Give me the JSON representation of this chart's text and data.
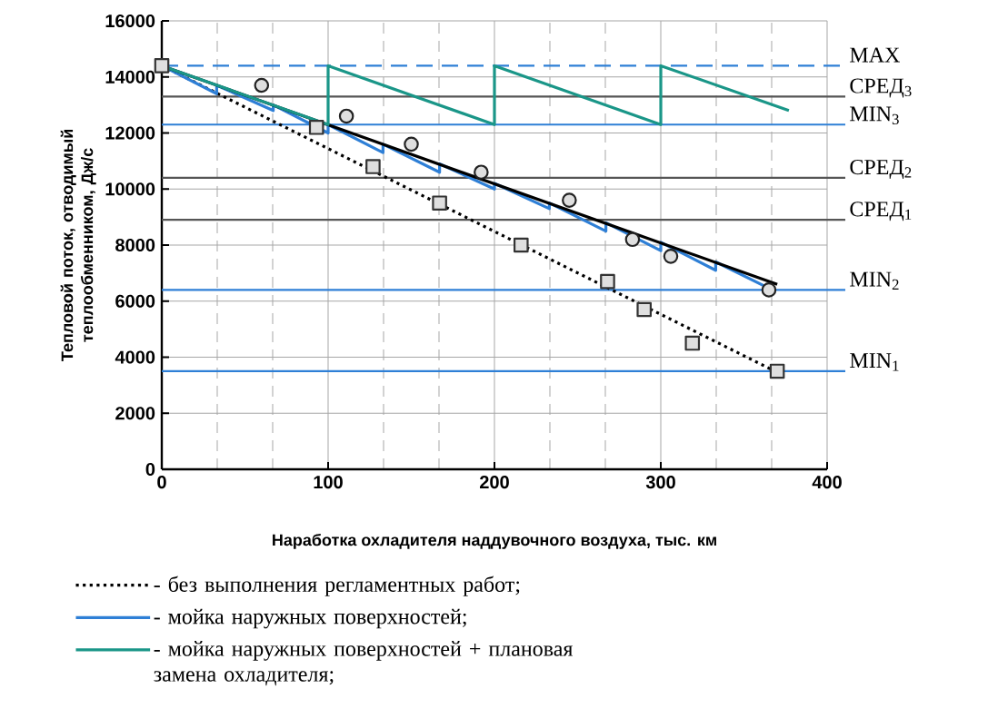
{
  "chart_data": {
    "type": "line",
    "xlabel": "Наработка охладителя наддувочного воздуха, тыс. км",
    "ylabel": "Тепловой поток, отводимый теплообменником, Дж/с",
    "xlim": [
      0,
      400
    ],
    "xticks": [
      0,
      100,
      200,
      300,
      400
    ],
    "ylim": [
      0,
      16000
    ],
    "yticks": [
      0,
      2000,
      4000,
      6000,
      8000,
      10000,
      12000,
      14000,
      16000
    ],
    "grid": true,
    "legend": "bottom",
    "series": [
      {
        "name": "- без выполнения регламентных работ;",
        "type": "line",
        "line_style": "dotted",
        "marker": "none",
        "color": "#000000",
        "x": [
          0,
          372
        ],
        "values": [
          14400,
          3400
        ]
      },
      {
        "type": "scatter",
        "marker": "square",
        "color": "#333333",
        "x": [
          0,
          93,
          127,
          167,
          216,
          268,
          290,
          319,
          370
        ],
        "values": [
          14400,
          12200,
          10800,
          9500,
          8000,
          6700,
          5700,
          4500,
          3500
        ]
      },
      {
        "name": "- мойка наружных поверхностей;",
        "type": "line",
        "line_style": "solid",
        "marker": "none",
        "color": "#2e7fd6",
        "x": [
          0,
          33,
          33,
          67,
          67,
          100,
          100,
          133,
          133,
          167,
          167,
          200,
          200,
          233,
          233,
          267,
          267,
          300,
          300,
          333,
          333,
          367
        ],
        "values": [
          14400,
          13400,
          13700,
          12800,
          13000,
          12000,
          12300,
          11300,
          11600,
          10600,
          10900,
          10000,
          10200,
          9300,
          9500,
          8500,
          8800,
          7800,
          8100,
          7100,
          7400,
          6400
        ]
      },
      {
        "type": "line",
        "line_style": "solid",
        "marker": "none",
        "color": "#000000",
        "x": [
          0,
          370
        ],
        "values": [
          14400,
          6600
        ]
      },
      {
        "type": "scatter",
        "marker": "circle",
        "color": "#222222",
        "x": [
          60,
          111,
          150,
          192,
          245,
          283,
          306,
          365
        ],
        "values": [
          13700,
          12600,
          11600,
          10600,
          9600,
          8200,
          7600,
          6400
        ]
      },
      {
        "name": "- мойка наружных поверхностей + плановая замена охладителя;",
        "type": "line",
        "line_style": "solid",
        "marker": "none",
        "color": "#1a9688",
        "x": [
          0,
          100,
          100,
          200,
          200,
          300,
          300,
          377
        ],
        "values": [
          14400,
          12300,
          14400,
          12300,
          14400,
          12300,
          14400,
          12800
        ]
      }
    ],
    "ref_lines": [
      {
        "axis": "y",
        "value": 14400,
        "label": "MAX",
        "color": "#2e7fd6",
        "line_style": "dashed"
      },
      {
        "axis": "y",
        "value": 13300,
        "label": "СРЕД$_{3}$",
        "color": "#555555",
        "line_style": "solid"
      },
      {
        "axis": "y",
        "value": 12300,
        "label": "MIN$_{3}$",
        "color": "#2e7fd6",
        "line_style": "solid"
      },
      {
        "axis": "y",
        "value": 10400,
        "label": "СРЕД$_{2}$",
        "color": "#555555",
        "line_style": "solid"
      },
      {
        "axis": "y",
        "value": 8900,
        "label": "СРЕД$_{1}$",
        "color": "#555555",
        "line_style": "solid"
      },
      {
        "axis": "y",
        "value": 6400,
        "label": "MIN$_{2}$",
        "color": "#2e7fd6",
        "line_style": "solid"
      },
      {
        "axis": "y",
        "value": 3500,
        "label": "MIN$_{1}$",
        "color": "#2e7fd6",
        "line_style": "solid"
      }
    ]
  }
}
